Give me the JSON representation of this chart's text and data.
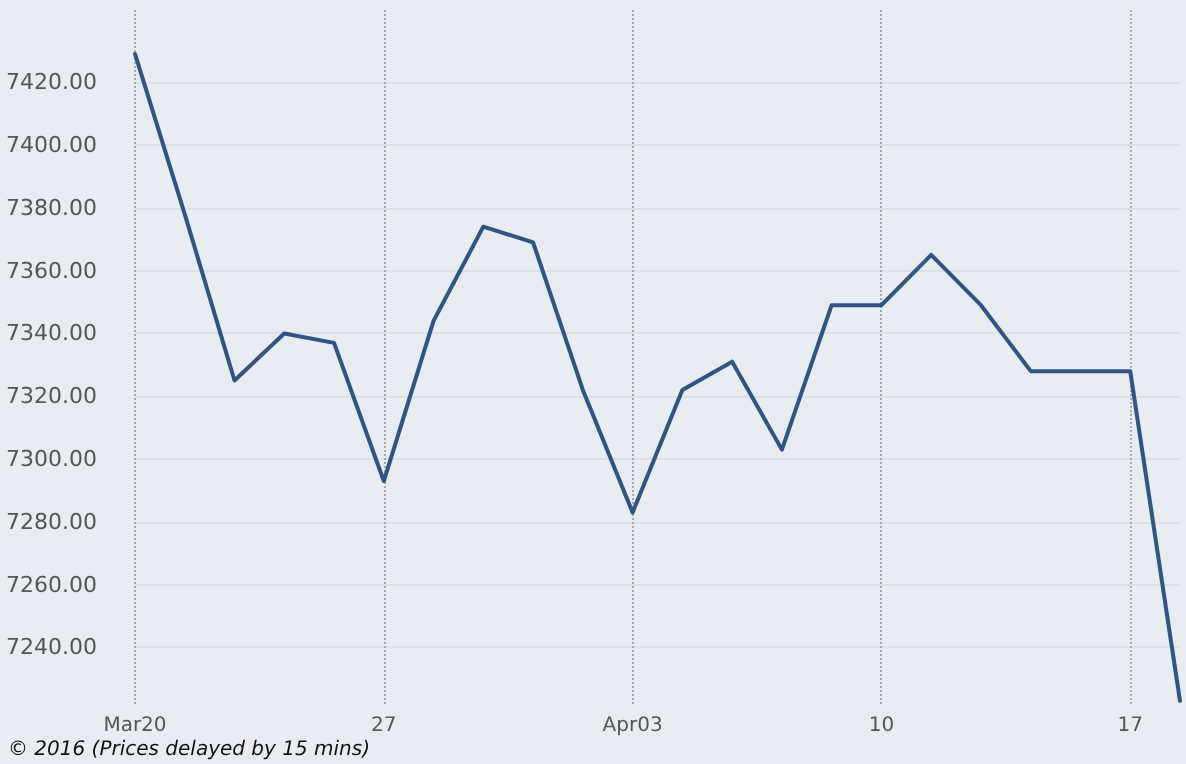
{
  "chart_data": {
    "type": "line",
    "categories": [
      "Mar20",
      null,
      null,
      null,
      null,
      "27",
      null,
      null,
      null,
      null,
      "Apr03",
      null,
      null,
      null,
      null,
      "10",
      null,
      null,
      null,
      null,
      "17",
      null
    ],
    "series": [
      {
        "color": "#2f5585",
        "values": [
          7429,
          7378,
          7325,
          7340,
          7337,
          7293,
          7344,
          7374,
          7369,
          7322,
          7283,
          7322,
          7331,
          7303,
          7349,
          7349,
          7365,
          7349,
          7328,
          7328,
          7328,
          7223
        ]
      }
    ],
    "ylim": [
      7222,
      7443
    ],
    "yticks": [
      {
        "value": 7240,
        "label": "7240.00"
      },
      {
        "value": 7260,
        "label": "7260.00"
      },
      {
        "value": 7280,
        "label": "7280.00"
      },
      {
        "value": 7300,
        "label": "7300.00"
      },
      {
        "value": 7320,
        "label": "7320.00"
      },
      {
        "value": 7340,
        "label": "7340.00"
      },
      {
        "value": 7360,
        "label": "7360.00"
      },
      {
        "value": 7380,
        "label": "7380.00"
      },
      {
        "value": 7400,
        "label": "7400.00"
      },
      {
        "value": 7420,
        "label": "7420.00"
      }
    ],
    "grid": true,
    "marker": "none",
    "line_style": "solid",
    "annotations": [
      "© 2016 (Prices delayed by 15 mins)"
    ]
  }
}
